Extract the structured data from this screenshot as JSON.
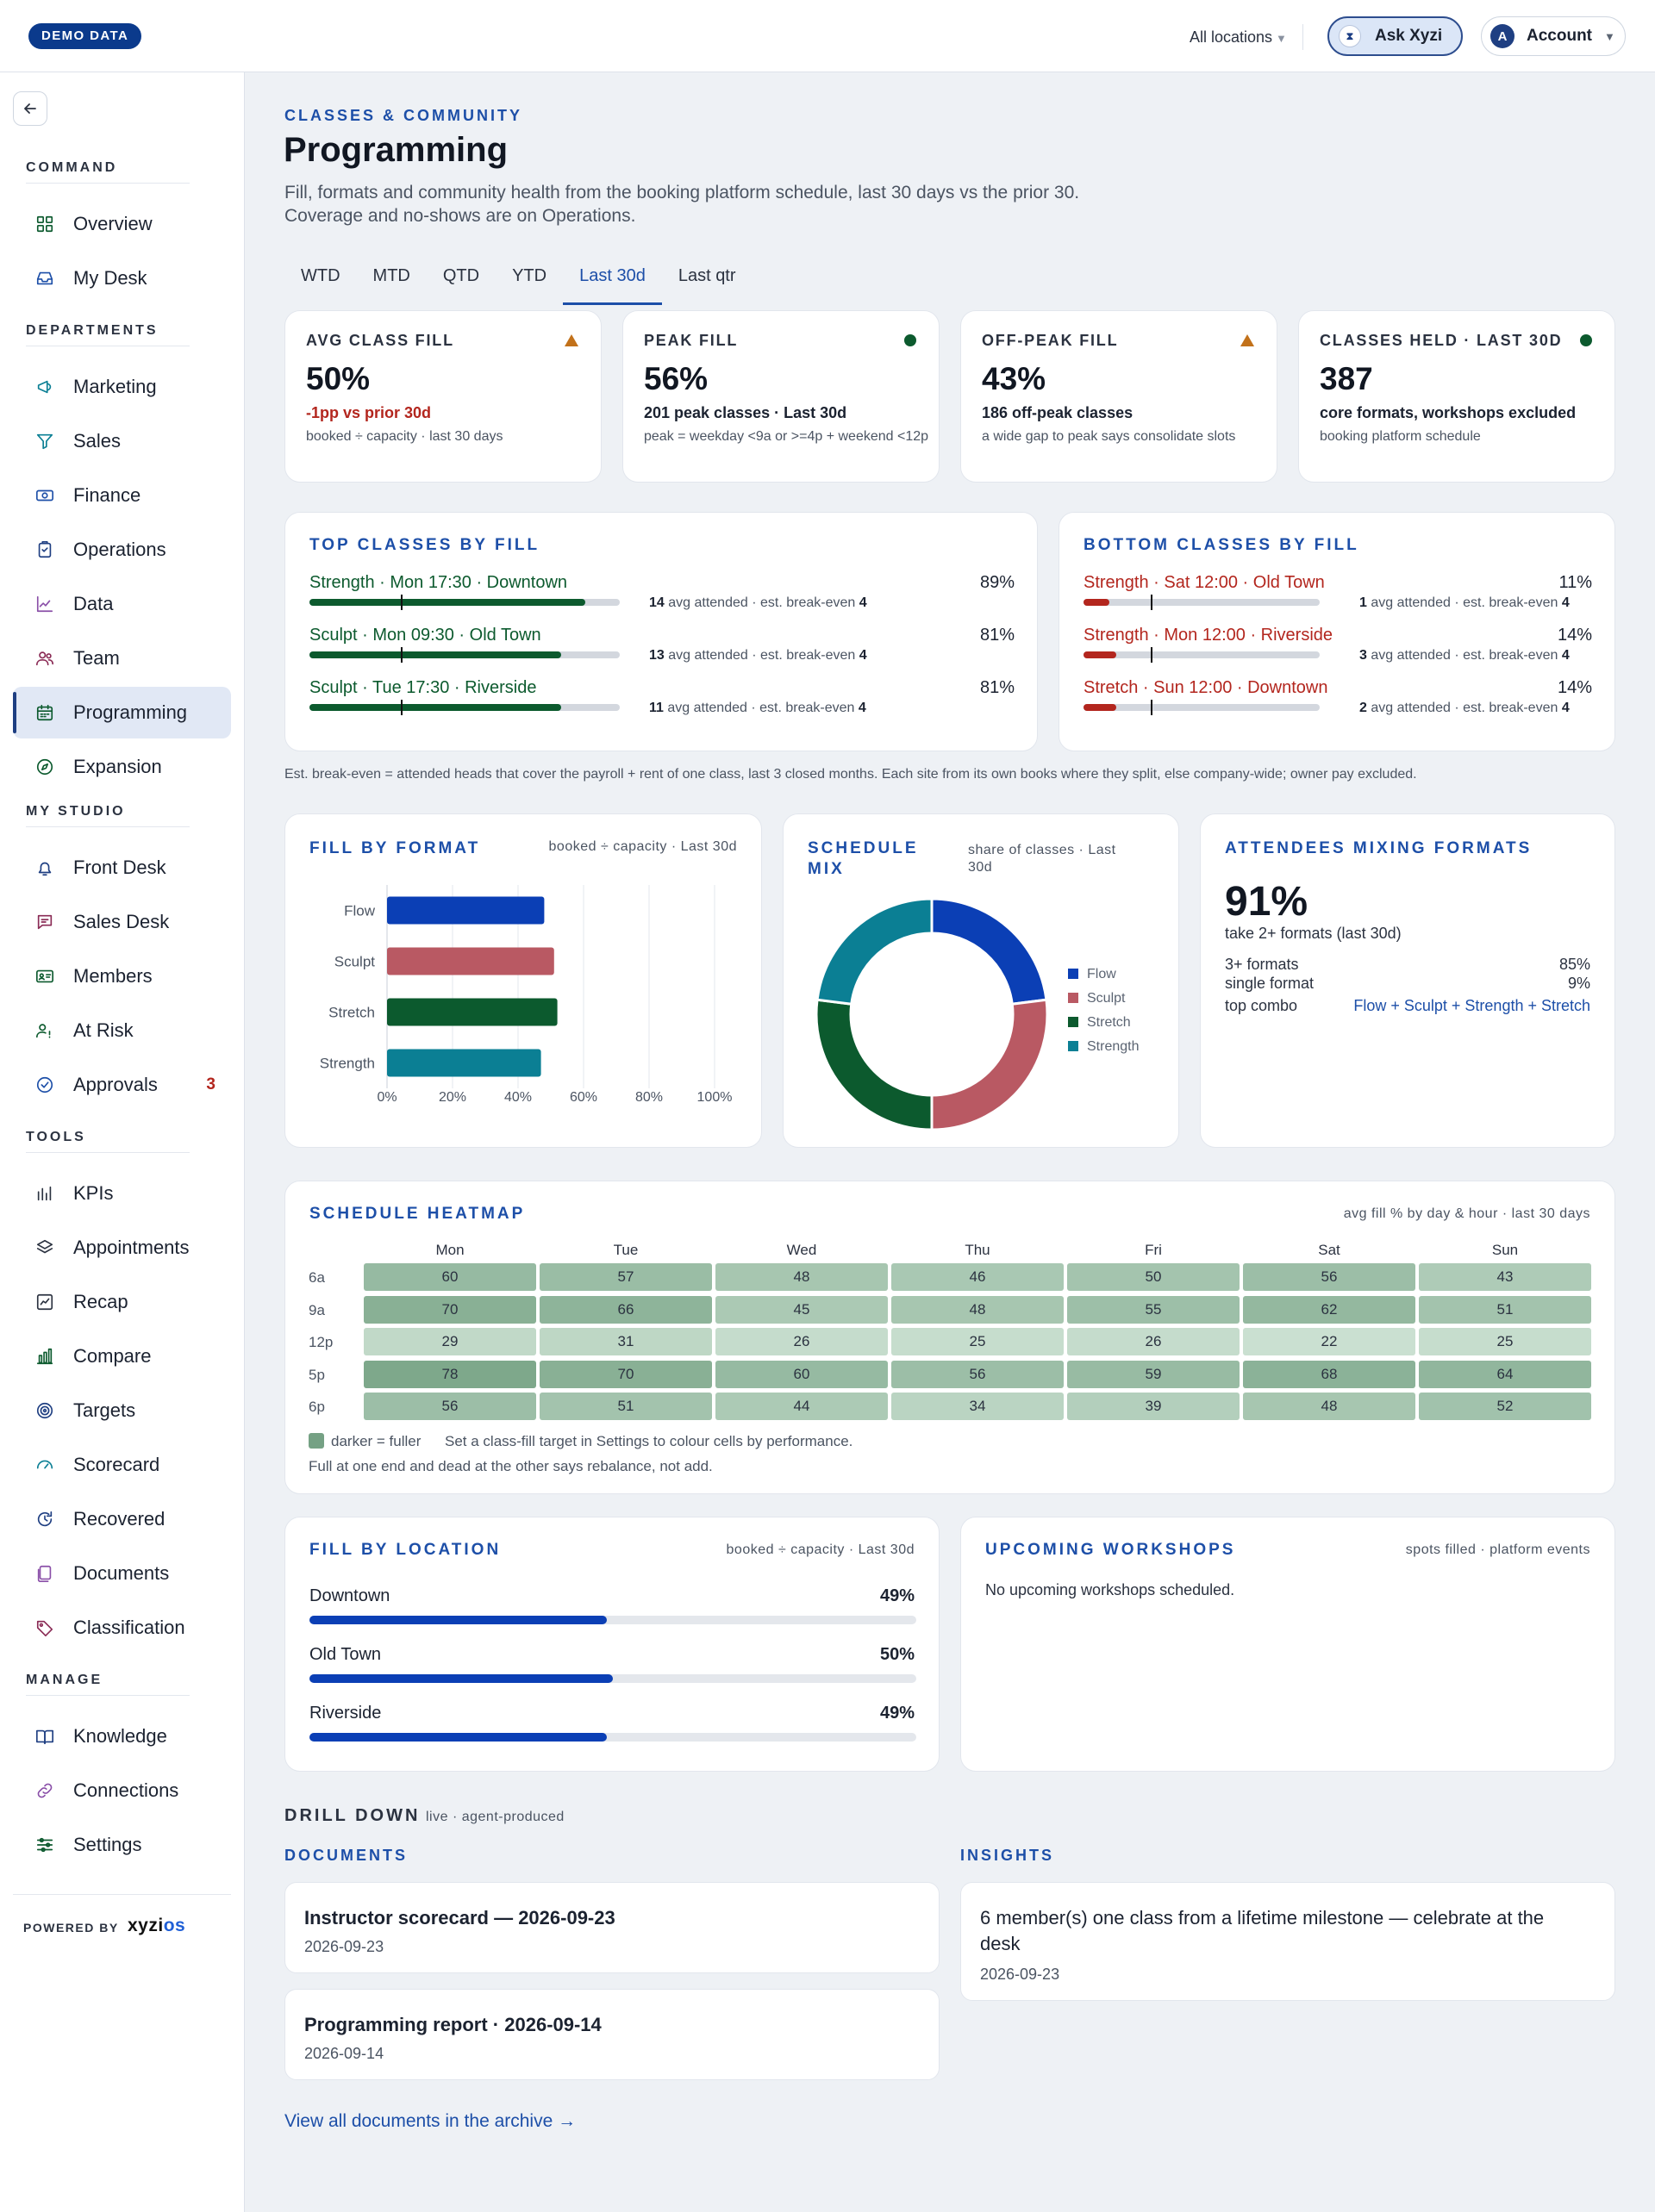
{
  "topbar": {
    "demo_badge": "DEMO DATA",
    "location": "All locations",
    "ask_label": "Ask Xyzi",
    "account_initial": "A",
    "account_label": "Account"
  },
  "sidebar": {
    "sections": [
      {
        "title": "COMMAND",
        "items": [
          {
            "label": "Overview",
            "icon": "grid-icon"
          },
          {
            "label": "My Desk",
            "icon": "inbox-icon"
          }
        ]
      },
      {
        "title": "DEPARTMENTS",
        "items": [
          {
            "label": "Marketing",
            "icon": "megaphone-icon"
          },
          {
            "label": "Sales",
            "icon": "funnel-icon"
          },
          {
            "label": "Finance",
            "icon": "banknote-icon"
          },
          {
            "label": "Operations",
            "icon": "clipboard-check-icon"
          },
          {
            "label": "Data",
            "icon": "line-chart-icon"
          },
          {
            "label": "Team",
            "icon": "users-icon"
          },
          {
            "label": "Programming",
            "icon": "calendar-icon",
            "active": true
          },
          {
            "label": "Expansion",
            "icon": "compass-icon"
          }
        ]
      },
      {
        "title": "MY STUDIO",
        "items": [
          {
            "label": "Front Desk",
            "icon": "bell-icon"
          },
          {
            "label": "Sales Desk",
            "icon": "message-icon"
          },
          {
            "label": "Members",
            "icon": "id-card-icon"
          },
          {
            "label": "At Risk",
            "icon": "user-alert-icon"
          },
          {
            "label": "Approvals",
            "icon": "check-circle-icon",
            "badge": "3"
          }
        ]
      },
      {
        "title": "TOOLS",
        "items": [
          {
            "label": "KPIs",
            "icon": "kpi-bars-icon"
          },
          {
            "label": "Appointments",
            "icon": "layers-icon"
          },
          {
            "label": "Recap",
            "icon": "recap-chart-icon"
          },
          {
            "label": "Compare",
            "icon": "bar-chart-icon"
          },
          {
            "label": "Targets",
            "icon": "target-icon"
          },
          {
            "label": "Scorecard",
            "icon": "gauge-icon"
          },
          {
            "label": "Recovered",
            "icon": "recover-icon"
          },
          {
            "label": "Documents",
            "icon": "documents-icon"
          },
          {
            "label": "Classification",
            "icon": "tag-icon"
          }
        ]
      },
      {
        "title": "MANAGE",
        "items": [
          {
            "label": "Knowledge",
            "icon": "book-icon"
          },
          {
            "label": "Connections",
            "icon": "link-icon"
          },
          {
            "label": "Settings",
            "icon": "sliders-icon"
          }
        ]
      }
    ],
    "powered_by": "POWERED BY",
    "brand_main": "xyzi",
    "brand_accent": "os"
  },
  "page": {
    "eyebrow": "CLASSES & COMMUNITY",
    "title": "Programming",
    "subtitle_1": "Fill, formats and community health from the booking platform schedule, last 30 days vs the prior 30.",
    "subtitle_2": "Coverage and no-shows are on Operations.",
    "tabs": [
      "WTD",
      "MTD",
      "QTD",
      "YTD",
      "Last 30d",
      "Last qtr"
    ],
    "active_tab": "Last 30d"
  },
  "kpis": [
    {
      "label": "AVG CLASS FILL",
      "status": "warn",
      "value": "50%",
      "delta": "-1pp vs prior 30d",
      "delta_negative": true,
      "note": "booked ÷ capacity · last 30 days"
    },
    {
      "label": "PEAK FILL",
      "status": "ok",
      "value": "56%",
      "delta": "201 peak classes · Last 30d",
      "delta_negative": false,
      "note": "peak = weekday <9a or >=4p + weekend <12p"
    },
    {
      "label": "OFF-PEAK FILL",
      "status": "warn",
      "value": "43%",
      "delta": "186 off-peak classes",
      "delta_negative": false,
      "note": "a wide gap to peak says consolidate slots"
    },
    {
      "label": "CLASSES HELD · LAST 30D",
      "status": "ok",
      "value": "387",
      "delta": "core formats, workshops excluded",
      "delta_negative": false,
      "note": "booking platform schedule"
    }
  ],
  "top_classes": {
    "title": "TOP CLASSES BY FILL",
    "rows": [
      {
        "name": "Strength · Mon 17:30 · Downtown",
        "fill": 89,
        "attended": "14",
        "breakeven": "4",
        "pct": "89%"
      },
      {
        "name": "Sculpt · Mon 09:30 · Old Town",
        "fill": 81,
        "attended": "13",
        "breakeven": "4",
        "pct": "81%"
      },
      {
        "name": "Sculpt · Tue 17:30 · Riverside",
        "fill": 81,
        "attended": "11",
        "breakeven": "4",
        "pct": "81%"
      }
    ]
  },
  "bottom_classes": {
    "title": "BOTTOM CLASSES BY FILL",
    "rows": [
      {
        "name": "Strength · Sat 12:00 · Old Town",
        "fill": 11,
        "attended": "1",
        "breakeven": "4",
        "pct": "11%"
      },
      {
        "name": "Strength · Mon 12:00 · Riverside",
        "fill": 14,
        "attended": "3",
        "breakeven": "4",
        "pct": "14%"
      },
      {
        "name": "Stretch · Sun 12:00 · Downtown",
        "fill": 14,
        "attended": "2",
        "breakeven": "4",
        "pct": "14%"
      }
    ]
  },
  "row_text": {
    "avg_attended": " avg attended · est. break-even "
  },
  "breakeven_note": "Est. break-even = attended heads that cover the payroll + rent of one class, last 3 closed months. Each site from its own books where they split, else company-wide; owner pay excluded.",
  "fill_by_format": {
    "title": "FILL BY FORMAT",
    "meta": "booked ÷ capacity · Last 30d"
  },
  "schedule_mix": {
    "title_1": "SCHEDULE",
    "title_2": "MIX",
    "meta_1": "share of classes · Last",
    "meta_2": "30d"
  },
  "attendees_mixing": {
    "title": "ATTENDEES MIXING FORMATS",
    "value": "91%",
    "caption": "take 2+ formats (last 30d)",
    "rows": [
      {
        "label": "3+ formats",
        "value": "85%"
      },
      {
        "label": "single format",
        "value": "9%"
      },
      {
        "label": "top combo",
        "value": "Flow + Sculpt + Strength + Stretch"
      }
    ]
  },
  "heatmap": {
    "title": "SCHEDULE HEATMAP",
    "meta": "avg fill % by day & hour · last 30 days",
    "days": [
      "Mon",
      "Tue",
      "Wed",
      "Thu",
      "Fri",
      "Sat",
      "Sun"
    ],
    "hours": [
      "6a",
      "9a",
      "12p",
      "5p",
      "6p"
    ],
    "values": [
      [
        60,
        57,
        48,
        46,
        50,
        56,
        43
      ],
      [
        70,
        66,
        45,
        48,
        55,
        62,
        51
      ],
      [
        29,
        31,
        26,
        25,
        26,
        22,
        25
      ],
      [
        78,
        70,
        60,
        56,
        59,
        68,
        64
      ],
      [
        56,
        51,
        44,
        34,
        39,
        48,
        52
      ]
    ],
    "legend": "darker = fuller",
    "legend_note": "Set a class-fill target in Settings to colour cells by performance.",
    "note": "Full at one end and dead at the other says rebalance, not add."
  },
  "fill_by_location": {
    "title": "FILL BY LOCATION",
    "meta": "booked ÷ capacity · Last 30d",
    "rows": [
      {
        "name": "Downtown",
        "fill": 49,
        "pct": "49%"
      },
      {
        "name": "Old Town",
        "fill": 50,
        "pct": "50%"
      },
      {
        "name": "Riverside",
        "fill": 49,
        "pct": "49%"
      }
    ]
  },
  "workshops": {
    "title": "UPCOMING WORKSHOPS",
    "meta": "spots filled · platform events",
    "empty": "No upcoming workshops scheduled."
  },
  "drill": {
    "title": "DRILL DOWN",
    "meta": "live · agent-produced",
    "documents_title": "DOCUMENTS",
    "insights_title": "INSIGHTS",
    "documents": [
      {
        "title": "Instructor scorecard — 2026-09-23",
        "date": "2026-09-23"
      },
      {
        "title": "Programming report · 2026-09-14",
        "date": "2026-09-14"
      }
    ],
    "insights": [
      {
        "title": "6 member(s) one class from a lifetime milestone — celebrate at the desk",
        "date": "2026-09-23"
      }
    ],
    "archive_link": "View all documents in the archive →"
  },
  "colors": {
    "flow": "#0b3fb5",
    "sculpt": "#b95963",
    "stretch": "#0c5a2e",
    "strength": "#0b7f94",
    "good_bar": "#0c5a2e",
    "bad_bar": "#b3261e",
    "accent": "#1d4fa8"
  },
  "chart_data": [
    {
      "type": "bar",
      "orientation": "horizontal",
      "title": "FILL BY FORMAT",
      "categories": [
        "Flow",
        "Sculpt",
        "Stretch",
        "Strength"
      ],
      "values": [
        48,
        51,
        52,
        47
      ],
      "xlim": [
        0,
        100
      ],
      "xticks": [
        "0%",
        "20%",
        "40%",
        "60%",
        "80%",
        "100%"
      ],
      "grid": true
    },
    {
      "type": "pie",
      "title": "SCHEDULE MIX",
      "donut": true,
      "categories": [
        "Flow",
        "Sculpt",
        "Stretch",
        "Strength"
      ],
      "values": [
        23,
        27,
        27,
        23
      ],
      "legend": "right"
    },
    {
      "type": "heatmap",
      "title": "SCHEDULE HEATMAP",
      "x": [
        "Mon",
        "Tue",
        "Wed",
        "Thu",
        "Fri",
        "Sat",
        "Sun"
      ],
      "y": [
        "6a",
        "9a",
        "12p",
        "5p",
        "6p"
      ],
      "values": [
        [
          60,
          57,
          48,
          46,
          50,
          56,
          43
        ],
        [
          70,
          66,
          45,
          48,
          55,
          62,
          51
        ],
        [
          29,
          31,
          26,
          25,
          26,
          22,
          25
        ],
        [
          78,
          70,
          60,
          56,
          59,
          68,
          64
        ],
        [
          56,
          51,
          44,
          34,
          39,
          48,
          52
        ]
      ]
    }
  ]
}
